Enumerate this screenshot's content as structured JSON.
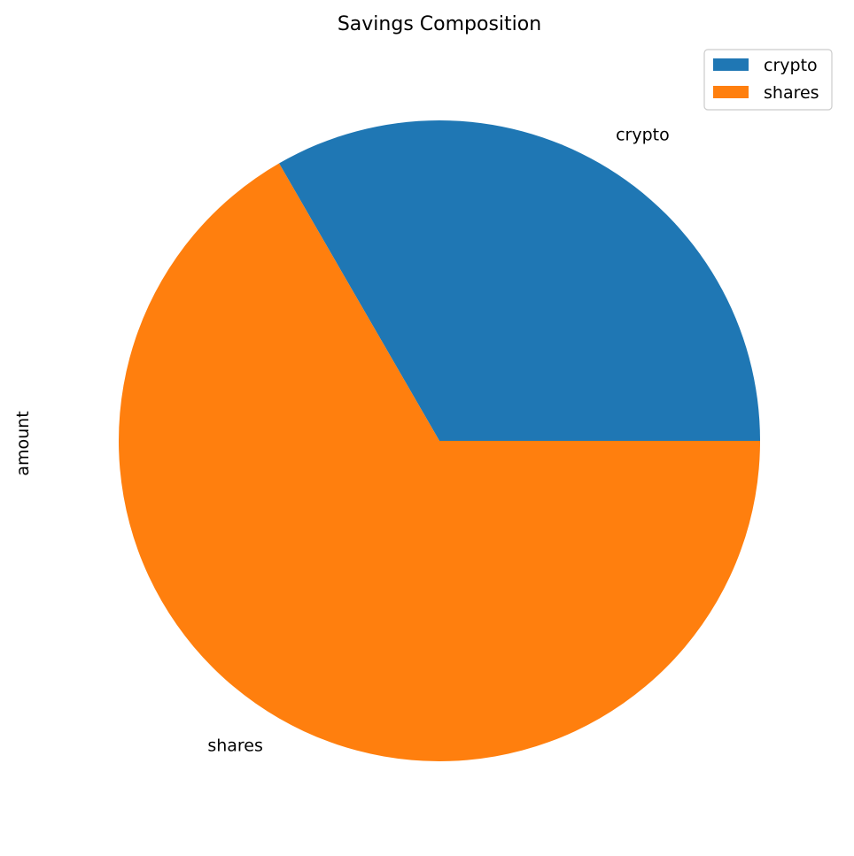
{
  "chart_data": {
    "type": "pie",
    "title": "Savings Composition",
    "ylabel": "amount",
    "categories": [
      "crypto",
      "shares"
    ],
    "values": [
      1,
      2
    ],
    "colors": [
      "#1f77b4",
      "#ff7f0e"
    ],
    "start_angle_deg": 0,
    "direction": "counterclockwise",
    "legend": {
      "position": "top-right",
      "entries": [
        "crypto",
        "shares"
      ]
    }
  }
}
